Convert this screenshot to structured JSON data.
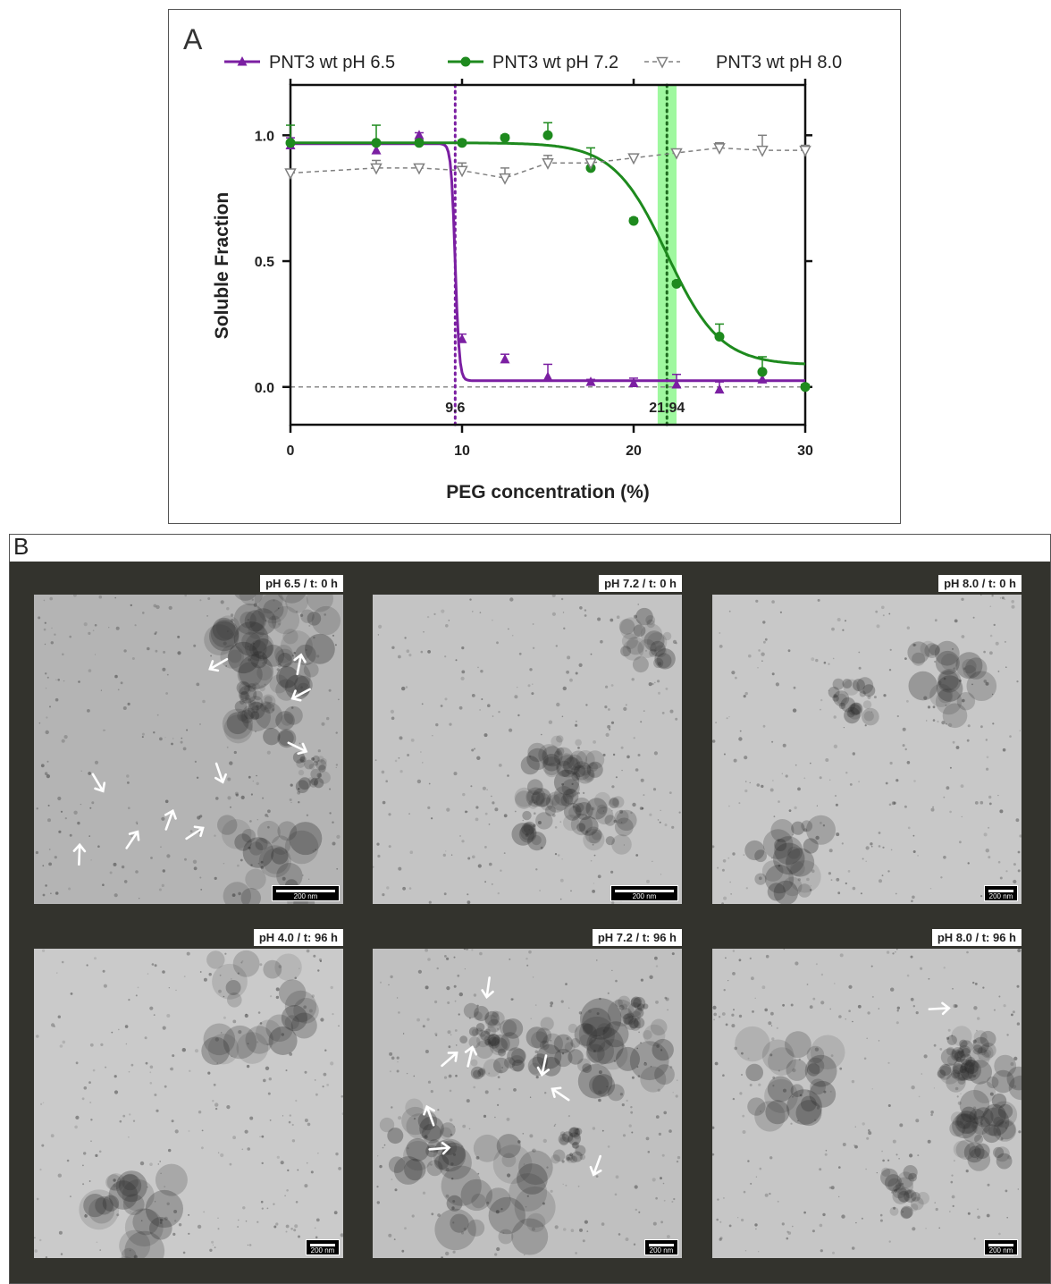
{
  "panel_a": {
    "letter": "A"
  },
  "panel_b": {
    "letter": "B"
  },
  "chart_data": {
    "type": "line",
    "xlabel": "PEG concentration (%)",
    "ylabel": "Soluble Fraction",
    "xlim": [
      0,
      30
    ],
    "ylim": [
      -0.15,
      1.2
    ],
    "x_ticks": [
      "0",
      "10",
      "20",
      "30"
    ],
    "y_ticks": [
      "0.0",
      "0.5",
      "1.0"
    ],
    "legend_position": "top",
    "series": [
      {
        "name": "PNT3 wt pH 6.5",
        "color": "#7b1fa2",
        "marker": "triangle-up",
        "fit": "sigmoid",
        "points": [
          {
            "x": 0,
            "y": 0.96,
            "err": 0.03
          },
          {
            "x": 5,
            "y": 0.94,
            "err": 0.03
          },
          {
            "x": 7.5,
            "y": 1.0,
            "err": 0.01
          },
          {
            "x": 10,
            "y": 0.19,
            "err": 0.02
          },
          {
            "x": 12.5,
            "y": 0.11,
            "err": 0.02
          },
          {
            "x": 15,
            "y": 0.04,
            "err": 0.05
          },
          {
            "x": 17.5,
            "y": 0.02,
            "err": 0.01
          },
          {
            "x": 20,
            "y": 0.015,
            "err": 0.02
          },
          {
            "x": 22.5,
            "y": 0.01,
            "err": 0.04
          },
          {
            "x": 25,
            "y": -0.01,
            "err": 0.03
          },
          {
            "x": 27.5,
            "y": 0.03,
            "err": 0.03
          }
        ]
      },
      {
        "name": "PNT3 wt pH 7.2",
        "color": "#1e8a1e",
        "marker": "circle",
        "fit": "sigmoid",
        "points": [
          {
            "x": 0,
            "y": 0.97,
            "err": 0.07
          },
          {
            "x": 5,
            "y": 0.97,
            "err": 0.07
          },
          {
            "x": 7.5,
            "y": 0.97,
            "err": 0.01
          },
          {
            "x": 10,
            "y": 0.97,
            "err": 0.01
          },
          {
            "x": 12.5,
            "y": 0.99,
            "err": 0.01
          },
          {
            "x": 15,
            "y": 1.0,
            "err": 0.05
          },
          {
            "x": 17.5,
            "y": 0.87,
            "err": 0.08
          },
          {
            "x": 20,
            "y": 0.66,
            "err": 0.01
          },
          {
            "x": 22.5,
            "y": 0.41,
            "err": 0.01
          },
          {
            "x": 25,
            "y": 0.2,
            "err": 0.05
          },
          {
            "x": 27.5,
            "y": 0.06,
            "err": 0.06
          },
          {
            "x": 30,
            "y": 0.0,
            "err": 0.01
          }
        ]
      },
      {
        "name": "PNT3 wt pH 8.0",
        "color": "#808080",
        "marker": "triangle-down-open",
        "dashed": true,
        "points": [
          {
            "x": 0,
            "y": 0.85,
            "err": 0.01
          },
          {
            "x": 5,
            "y": 0.87,
            "err": 0.03
          },
          {
            "x": 7.5,
            "y": 0.87,
            "err": 0.01
          },
          {
            "x": 10,
            "y": 0.86,
            "err": 0.03
          },
          {
            "x": 12.5,
            "y": 0.83,
            "err": 0.04
          },
          {
            "x": 15,
            "y": 0.89,
            "err": 0.03
          },
          {
            "x": 17.5,
            "y": 0.89,
            "err": 0.01
          },
          {
            "x": 20,
            "y": 0.91,
            "err": 0.01
          },
          {
            "x": 22.5,
            "y": 0.93,
            "err": 0.01
          },
          {
            "x": 25,
            "y": 0.95,
            "err": 0.02
          },
          {
            "x": 27.5,
            "y": 0.94,
            "err": 0.06
          },
          {
            "x": 30,
            "y": 0.94,
            "err": 0.02
          }
        ]
      }
    ],
    "midpoints": [
      {
        "x": 9.6,
        "label": "9.6",
        "color": "#7b1fa2",
        "style": "dotted"
      },
      {
        "x": 21.94,
        "label": "21.94",
        "color": "#1e6b1e",
        "style": "dotted",
        "band": [
          21.4,
          22.5
        ],
        "band_color": "#7ff57f"
      }
    ],
    "zero_line": true
  },
  "micrographs": [
    {
      "label": "pH 6.5 / t: 0 h",
      "scale": "200 nm",
      "tone": "#b4b4b4",
      "blobs": 6,
      "arrows": 10
    },
    {
      "label": "pH 7.2 / t: 0 h",
      "scale": "200 nm",
      "tone": "#c4c4c4",
      "blobs": 5,
      "arrows": 0
    },
    {
      "label": "pH 8.0 / t: 0 h",
      "scale": "200 nm",
      "tone": "#c8c8c8",
      "blobs": 3,
      "arrows": 0
    },
    {
      "label": "pH 4.0 / t: 96 h",
      "scale": "200 nm",
      "tone": "#cacaca",
      "blobs": 2,
      "arrows": 0
    },
    {
      "label": "pH 7.2 / t: 96 h",
      "scale": "200 nm",
      "tone": "#c0c0c0",
      "blobs": 8,
      "arrows": 8
    },
    {
      "label": "pH 8.0 / t: 96 h",
      "scale": "200 nm",
      "tone": "#c6c6c6",
      "blobs": 6,
      "arrows": 1
    }
  ]
}
